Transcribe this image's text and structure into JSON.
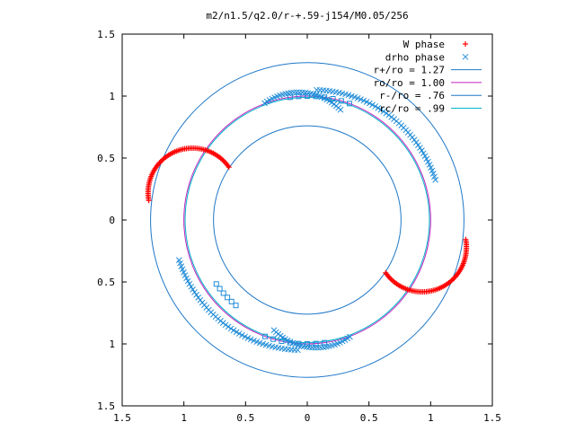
{
  "chart_data": {
    "type": "scatter",
    "title": "m2/n1.5/q2.0/r-+.59-j154/M0.05/256",
    "xlabel": "",
    "ylabel": "",
    "xlim": [
      -1.5,
      1.5
    ],
    "ylim": [
      -1.5,
      1.5
    ],
    "grid": false,
    "legend_position": "top-right",
    "x_ticks": [
      "1.5",
      "1",
      "0.5",
      "0",
      "0.5",
      "1",
      "1.5"
    ],
    "y_ticks": [
      "1.5",
      "1",
      "0.5",
      "0",
      "0.5",
      "1",
      "1.5"
    ],
    "tick_values": [
      -1.5,
      -1,
      -0.5,
      0,
      0.5,
      1,
      1.5
    ],
    "circles": [
      {
        "name": "r+/ro = 1.27",
        "radius": 1.27,
        "color": "#1f78c8"
      },
      {
        "name": "ro/ro = 1.00",
        "radius": 1.0,
        "color": "#c020c0"
      },
      {
        "name": "r-/ro = .76",
        "radius": 0.76,
        "color": "#1f78c8"
      },
      {
        "name": "rc/ro = .99",
        "radius": 0.99,
        "color": "#00b4c8"
      }
    ],
    "series": [
      {
        "name": "W phase",
        "marker": "+",
        "color": "#ff0000",
        "arcs": [
          {
            "center": [
              -0.93,
              0.22
            ],
            "radius": 0.36,
            "start_deg": 35,
            "end_deg": 190,
            "n": 70
          },
          {
            "center": [
              0.93,
              -0.22
            ],
            "radius": 0.36,
            "start_deg": 215,
            "end_deg": 370,
            "n": 70
          }
        ]
      },
      {
        "name": "drho phase",
        "marker": "x",
        "color": "#1f8cd8",
        "arcs": [
          {
            "center": [
              0.04,
              0.0
            ],
            "radius": 1.05,
            "start_deg": 18,
            "end_deg": 88,
            "n": 50
          },
          {
            "center": [
              -0.04,
              0.0
            ],
            "radius": 1.05,
            "start_deg": 198,
            "end_deg": 268,
            "n": 50
          },
          {
            "center": [
              -0.07,
              0.55
            ],
            "radius": 0.48,
            "start_deg": 45,
            "end_deg": 125,
            "n": 30
          },
          {
            "center": [
              0.07,
              -0.55
            ],
            "radius": 0.48,
            "start_deg": 225,
            "end_deg": 305,
            "n": 30
          }
        ],
        "square_arcs": [
          {
            "radius": 1.0,
            "start_deg": 70,
            "end_deg": 98,
            "n": 8
          },
          {
            "radius": 1.0,
            "start_deg": 250,
            "end_deg": 278,
            "n": 8
          },
          {
            "radius": 0.9,
            "start_deg": 215,
            "end_deg": 230,
            "n": 6
          }
        ]
      }
    ]
  }
}
